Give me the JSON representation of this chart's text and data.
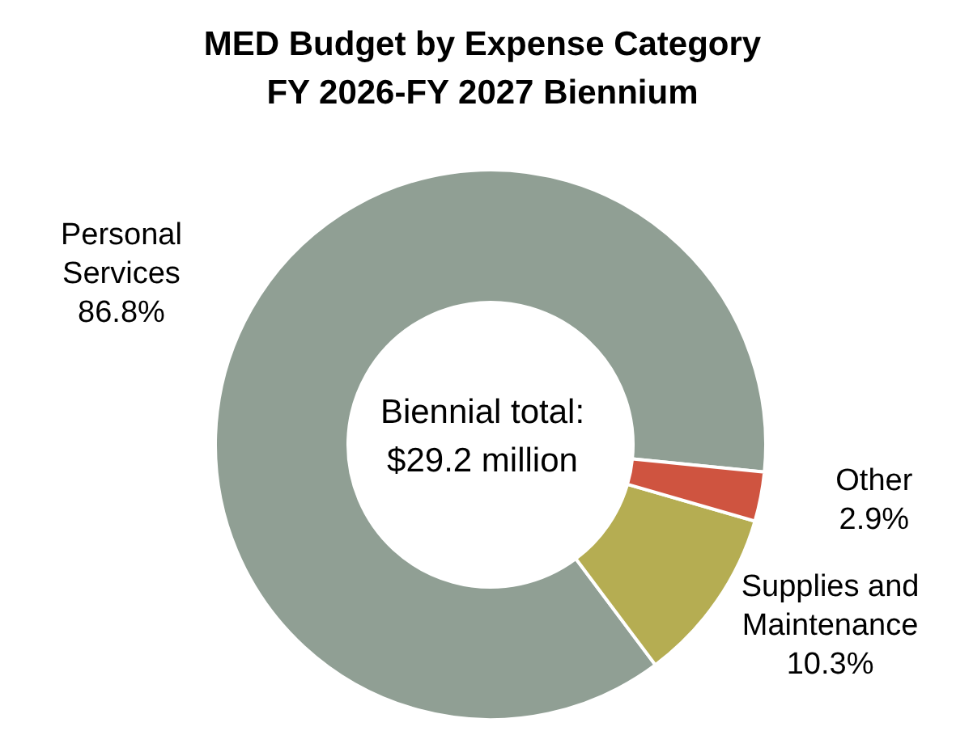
{
  "chart_data": {
    "type": "donut",
    "title": "MED Budget by Expense Category",
    "subtitle": "FY 2026-FY 2027 Biennium",
    "categories": [
      "Personal Services",
      "Supplies and Maintenance",
      "Other"
    ],
    "values": [
      86.8,
      10.3,
      2.9
    ],
    "value_labels": [
      "86.8%",
      "10.3%",
      "2.9%"
    ],
    "colors": [
      "#909f94",
      "#b5ad52",
      "#cf5440"
    ],
    "annotations": [
      "Biennial total:",
      "$29.2 million"
    ],
    "legend": false
  }
}
